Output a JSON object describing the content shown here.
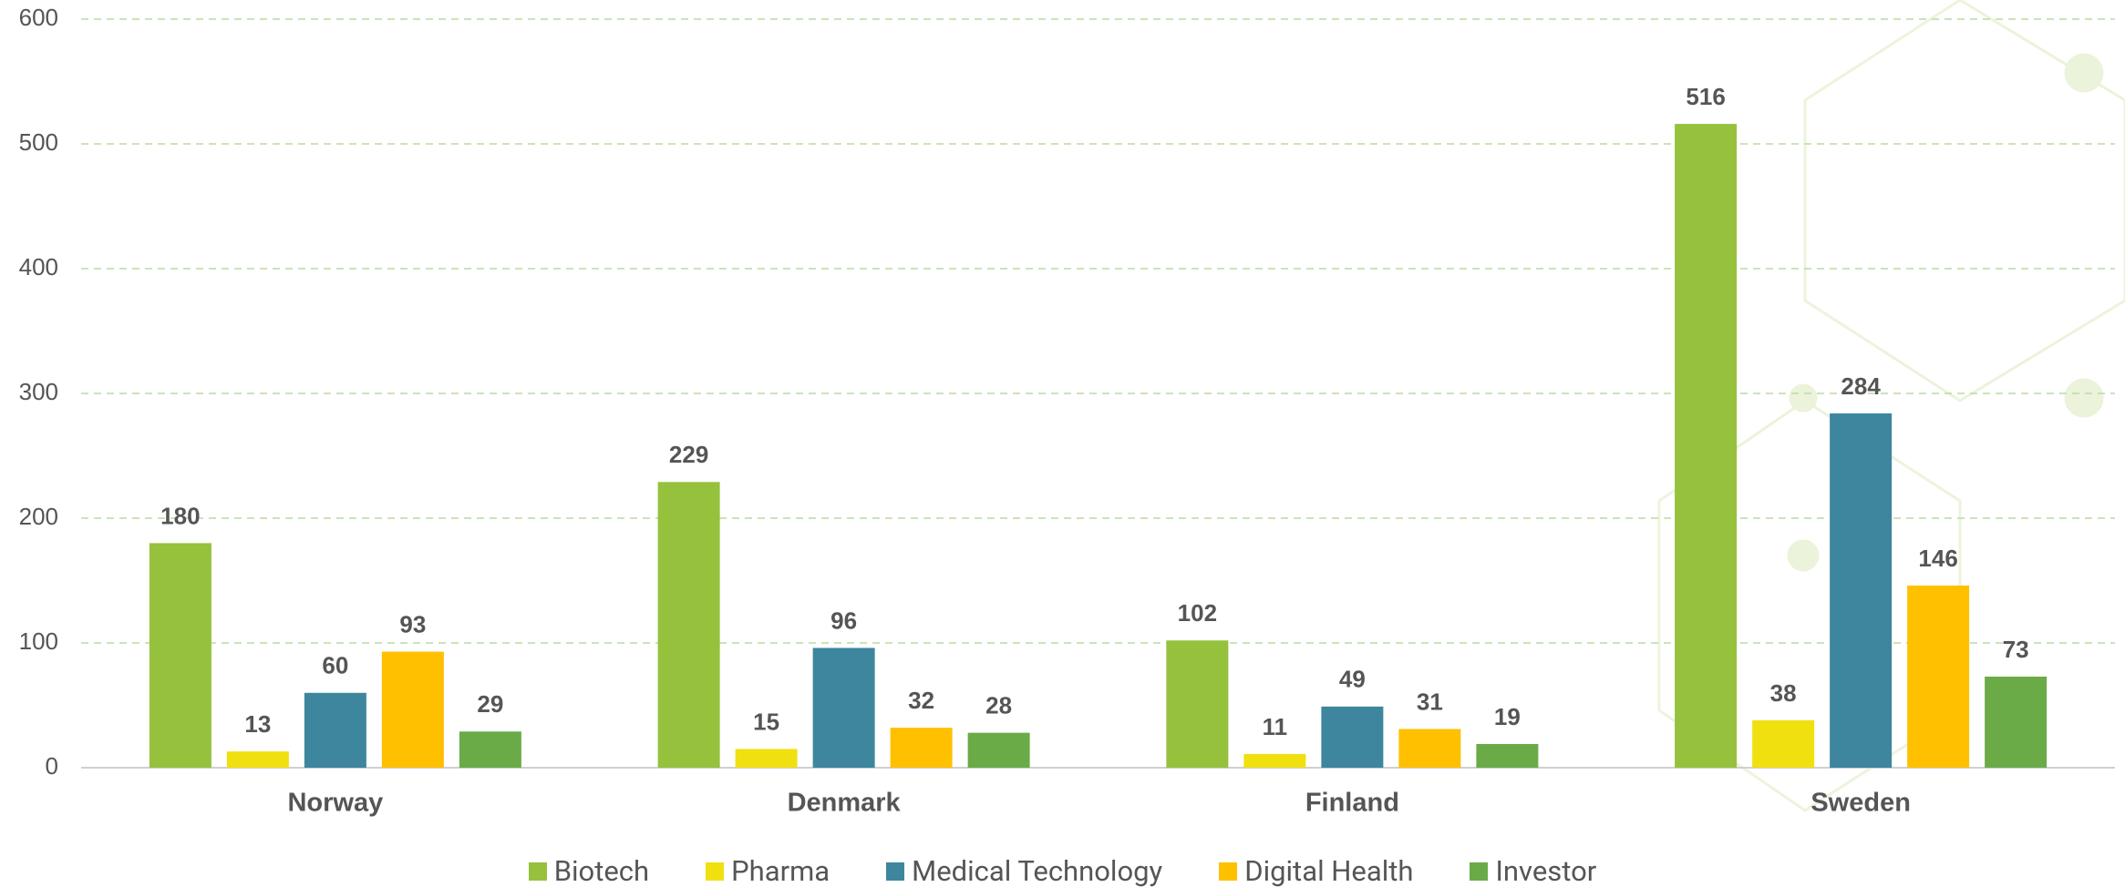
{
  "chart_data": {
    "type": "bar",
    "categories": [
      "Norway",
      "Denmark",
      "Finland",
      "Sweden"
    ],
    "series": [
      {
        "name": "Biotech",
        "color": "#95c13d",
        "values": [
          180,
          229,
          102,
          516
        ]
      },
      {
        "name": "Pharma",
        "color": "#f0e010",
        "values": [
          13,
          15,
          11,
          38
        ]
      },
      {
        "name": "Medical Technology",
        "color": "#3d869e",
        "values": [
          60,
          96,
          49,
          284
        ]
      },
      {
        "name": "Digital Health",
        "color": "#ffc000",
        "values": [
          93,
          32,
          31,
          146
        ]
      },
      {
        "name": "Investor",
        "color": "#6aab48",
        "values": [
          29,
          28,
          19,
          73
        ]
      }
    ],
    "ylim": [
      0,
      600
    ],
    "yticks": [
      0,
      100,
      200,
      300,
      400,
      500,
      600
    ],
    "grid": true,
    "legend": "bottom"
  }
}
